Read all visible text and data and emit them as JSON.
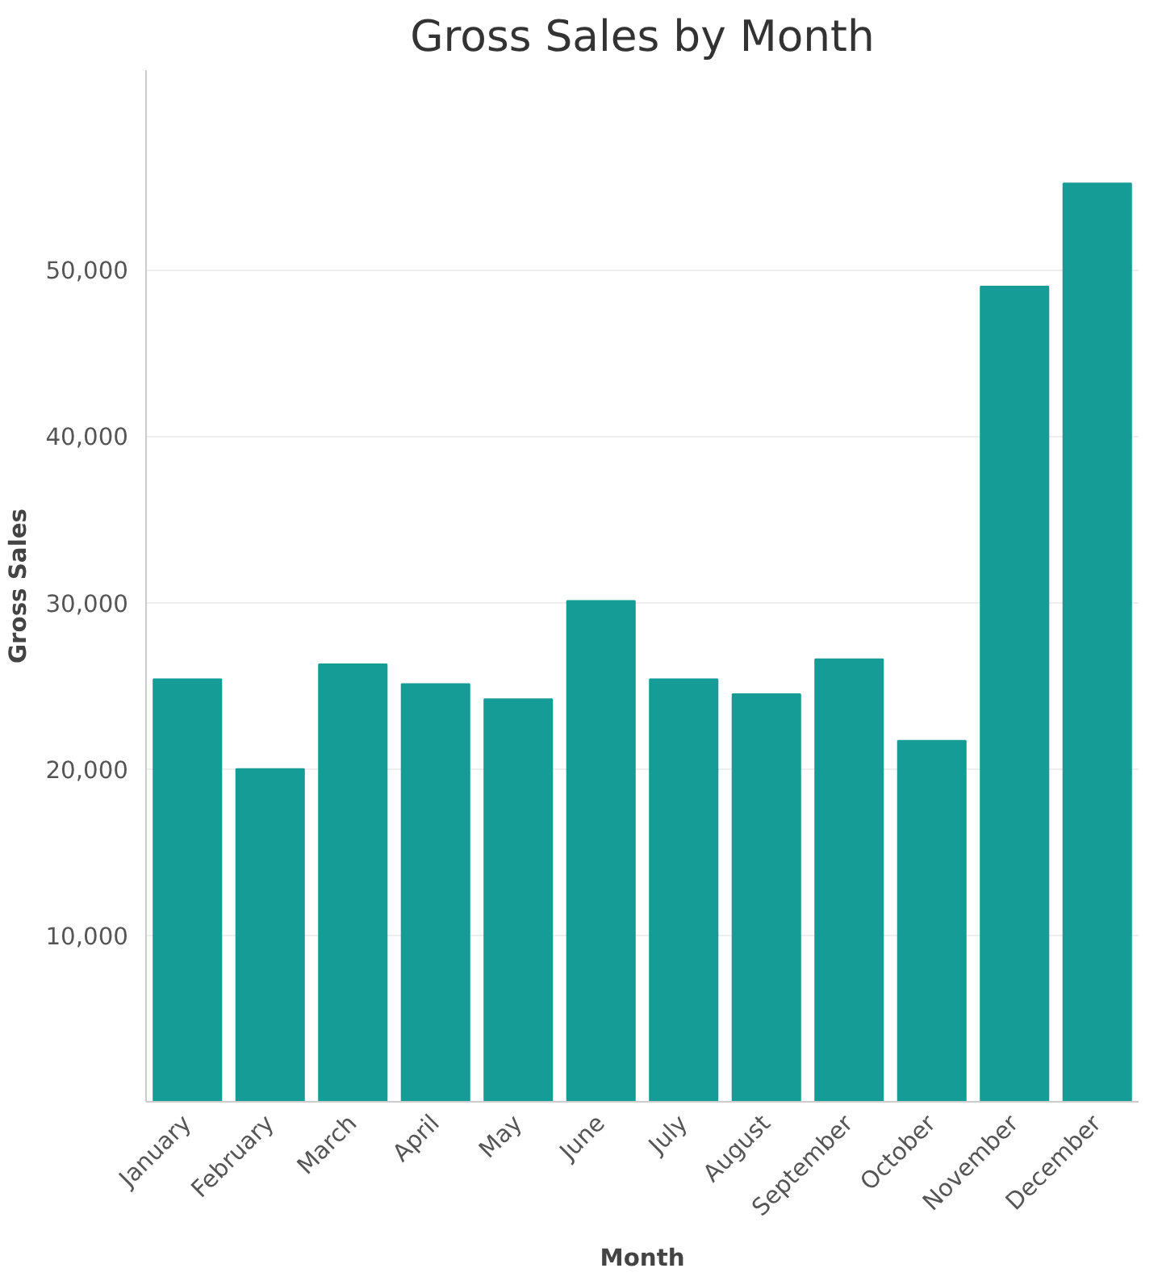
{
  "chart_data": {
    "type": "bar",
    "title": "Gross Sales by Month",
    "xlabel": "Month",
    "ylabel": "Gross Sales",
    "categories": [
      "January",
      "February",
      "March",
      "April",
      "May",
      "June",
      "July",
      "August",
      "September",
      "October",
      "November",
      "December"
    ],
    "values": [
      25400,
      20000,
      26300,
      25100,
      24200,
      30100,
      25400,
      24500,
      26600,
      21700,
      49000,
      55200
    ],
    "color": "#169c96",
    "ylim": [
      0,
      62000
    ],
    "yticks": [
      {
        "value": 10000,
        "label": "10,000"
      },
      {
        "value": 20000,
        "label": "20,000"
      },
      {
        "value": 30000,
        "label": "30,000"
      },
      {
        "value": 40000,
        "label": "40,000"
      },
      {
        "value": 50000,
        "label": "50,000"
      }
    ],
    "grid": "y"
  }
}
